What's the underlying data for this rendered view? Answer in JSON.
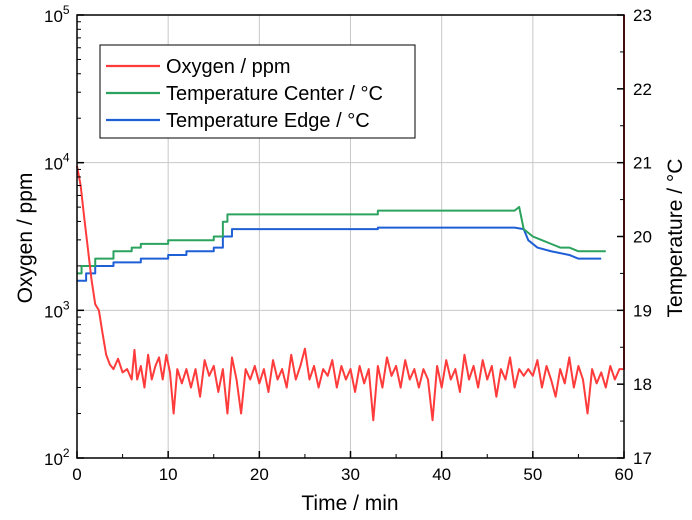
{
  "chart_data": {
    "type": "line",
    "xlabel": "Time / min",
    "ylabel_left": "Oxygen / ppm",
    "ylabel_right": "Temperature / °C",
    "xlim": [
      0,
      60
    ],
    "ylim_left": [
      100,
      100000
    ],
    "yscale_left": "log",
    "ylim_right": [
      17,
      23
    ],
    "grid": true,
    "legend_position": "top-left",
    "x_ticks": [
      "0",
      "10",
      "20",
      "30",
      "40",
      "50",
      "60"
    ],
    "y_left_ticks": [
      {
        "base": "10",
        "exp": "2"
      },
      {
        "base": "10",
        "exp": "3"
      },
      {
        "base": "10",
        "exp": "4"
      },
      {
        "base": "10",
        "exp": "5"
      }
    ],
    "y_right_ticks": [
      "17",
      "18",
      "19",
      "20",
      "21",
      "22",
      "23"
    ],
    "series": [
      {
        "name": "Oxygen / ppm",
        "axis": "left",
        "color": "#ff3b3b",
        "points": [
          [
            0,
            9500
          ],
          [
            0.4,
            7000
          ],
          [
            0.8,
            4200
          ],
          [
            1.2,
            2600
          ],
          [
            1.6,
            1600
          ],
          [
            2,
            1100
          ],
          [
            2.4,
            1000
          ],
          [
            2.8,
            700
          ],
          [
            3.2,
            500
          ],
          [
            3.6,
            430
          ],
          [
            4,
            400
          ],
          [
            4.5,
            470
          ],
          [
            5,
            380
          ],
          [
            5.5,
            400
          ],
          [
            6,
            340
          ],
          [
            6.3,
            540
          ],
          [
            6.6,
            340
          ],
          [
            7,
            420
          ],
          [
            7.4,
            300
          ],
          [
            7.8,
            500
          ],
          [
            8.2,
            340
          ],
          [
            8.6,
            420
          ],
          [
            9,
            480
          ],
          [
            9.4,
            340
          ],
          [
            9.8,
            500
          ],
          [
            10.2,
            380
          ],
          [
            10.6,
            200
          ],
          [
            11,
            400
          ],
          [
            11.5,
            320
          ],
          [
            12,
            400
          ],
          [
            12.5,
            300
          ],
          [
            13,
            400
          ],
          [
            13.5,
            260
          ],
          [
            14,
            460
          ],
          [
            14.5,
            360
          ],
          [
            15,
            420
          ],
          [
            15.5,
            280
          ],
          [
            16,
            400
          ],
          [
            16.5,
            200
          ],
          [
            17,
            480
          ],
          [
            17.5,
            340
          ],
          [
            18,
            200
          ],
          [
            18.5,
            400
          ],
          [
            19,
            340
          ],
          [
            19.5,
            420
          ],
          [
            20,
            320
          ],
          [
            20.5,
            400
          ],
          [
            21,
            280
          ],
          [
            21.5,
            460
          ],
          [
            22,
            340
          ],
          [
            22.5,
            400
          ],
          [
            23,
            300
          ],
          [
            23.5,
            500
          ],
          [
            24,
            340
          ],
          [
            24.5,
            420
          ],
          [
            25,
            550
          ],
          [
            25.5,
            340
          ],
          [
            26,
            420
          ],
          [
            26.5,
            300
          ],
          [
            27,
            400
          ],
          [
            27.5,
            360
          ],
          [
            28,
            460
          ],
          [
            28.5,
            300
          ],
          [
            29,
            420
          ],
          [
            29.5,
            340
          ],
          [
            30,
            400
          ],
          [
            30.5,
            280
          ],
          [
            31,
            420
          ],
          [
            31.5,
            320
          ],
          [
            32,
            400
          ],
          [
            32.5,
            180
          ],
          [
            33,
            420
          ],
          [
            33.5,
            300
          ],
          [
            34,
            480
          ],
          [
            34.5,
            360
          ],
          [
            35,
            420
          ],
          [
            35.5,
            300
          ],
          [
            36,
            460
          ],
          [
            36.5,
            340
          ],
          [
            37,
            400
          ],
          [
            37.5,
            300
          ],
          [
            38,
            400
          ],
          [
            38.5,
            340
          ],
          [
            39,
            180
          ],
          [
            39.5,
            420
          ],
          [
            40,
            300
          ],
          [
            40.5,
            460
          ],
          [
            41,
            340
          ],
          [
            41.5,
            400
          ],
          [
            42,
            280
          ],
          [
            42.5,
            500
          ],
          [
            43,
            340
          ],
          [
            43.5,
            420
          ],
          [
            44,
            300
          ],
          [
            44.5,
            460
          ],
          [
            45,
            340
          ],
          [
            45.5,
            420
          ],
          [
            46,
            260
          ],
          [
            46.5,
            400
          ],
          [
            47,
            340
          ],
          [
            47.5,
            480
          ],
          [
            48,
            300
          ],
          [
            48.5,
            400
          ],
          [
            49,
            360
          ],
          [
            49.5,
            400
          ],
          [
            50,
            360
          ],
          [
            50.5,
            460
          ],
          [
            51,
            300
          ],
          [
            51.5,
            420
          ],
          [
            52,
            340
          ],
          [
            52.5,
            260
          ],
          [
            53,
            400
          ],
          [
            53.5,
            320
          ],
          [
            54,
            480
          ],
          [
            54.5,
            300
          ],
          [
            55,
            420
          ],
          [
            55.5,
            340
          ],
          [
            56,
            200
          ],
          [
            56.5,
            400
          ],
          [
            57,
            320
          ],
          [
            57.5,
            380
          ],
          [
            58,
            300
          ],
          [
            58.5,
            420
          ],
          [
            59,
            340
          ],
          [
            59.5,
            400
          ],
          [
            60,
            400
          ],
          [
            60,
            100000
          ]
        ]
      },
      {
        "name": "Temperature Center / °C",
        "axis": "right",
        "color": "#2ca25f",
        "points": [
          [
            0,
            19.5
          ],
          [
            0.5,
            19.5
          ],
          [
            0.5,
            19.6
          ],
          [
            2,
            19.6
          ],
          [
            2,
            19.7
          ],
          [
            4,
            19.7
          ],
          [
            4,
            19.8
          ],
          [
            6,
            19.8
          ],
          [
            6,
            19.85
          ],
          [
            7,
            19.85
          ],
          [
            7,
            19.9
          ],
          [
            10,
            19.9
          ],
          [
            10,
            19.95
          ],
          [
            15,
            19.95
          ],
          [
            15,
            20.0
          ],
          [
            16,
            20.0
          ],
          [
            16,
            20.2
          ],
          [
            16.5,
            20.2
          ],
          [
            16.5,
            20.3
          ],
          [
            33,
            20.3
          ],
          [
            33,
            20.35
          ],
          [
            48,
            20.35
          ],
          [
            48.5,
            20.4
          ],
          [
            49,
            20.1
          ],
          [
            50,
            20.0
          ],
          [
            51,
            19.95
          ],
          [
            52,
            19.9
          ],
          [
            53,
            19.85
          ],
          [
            54,
            19.85
          ],
          [
            55,
            19.8
          ],
          [
            58,
            19.8
          ]
        ]
      },
      {
        "name": "Temperature Edge / °C",
        "axis": "right",
        "color": "#1f5fd6",
        "points": [
          [
            0,
            19.4
          ],
          [
            1,
            19.4
          ],
          [
            1,
            19.5
          ],
          [
            2,
            19.5
          ],
          [
            2,
            19.6
          ],
          [
            4,
            19.6
          ],
          [
            4,
            19.65
          ],
          [
            7,
            19.65
          ],
          [
            7,
            19.7
          ],
          [
            10,
            19.7
          ],
          [
            10,
            19.75
          ],
          [
            12,
            19.75
          ],
          [
            12,
            19.8
          ],
          [
            15,
            19.8
          ],
          [
            15,
            19.85
          ],
          [
            16,
            19.85
          ],
          [
            16,
            20.0
          ],
          [
            17,
            20.0
          ],
          [
            17,
            20.1
          ],
          [
            33,
            20.1
          ],
          [
            33,
            20.12
          ],
          [
            48,
            20.12
          ],
          [
            49,
            20.1
          ],
          [
            49.5,
            19.95
          ],
          [
            50.5,
            19.85
          ],
          [
            52,
            19.8
          ],
          [
            54,
            19.75
          ],
          [
            55,
            19.7
          ],
          [
            57.5,
            19.7
          ]
        ]
      }
    ]
  }
}
